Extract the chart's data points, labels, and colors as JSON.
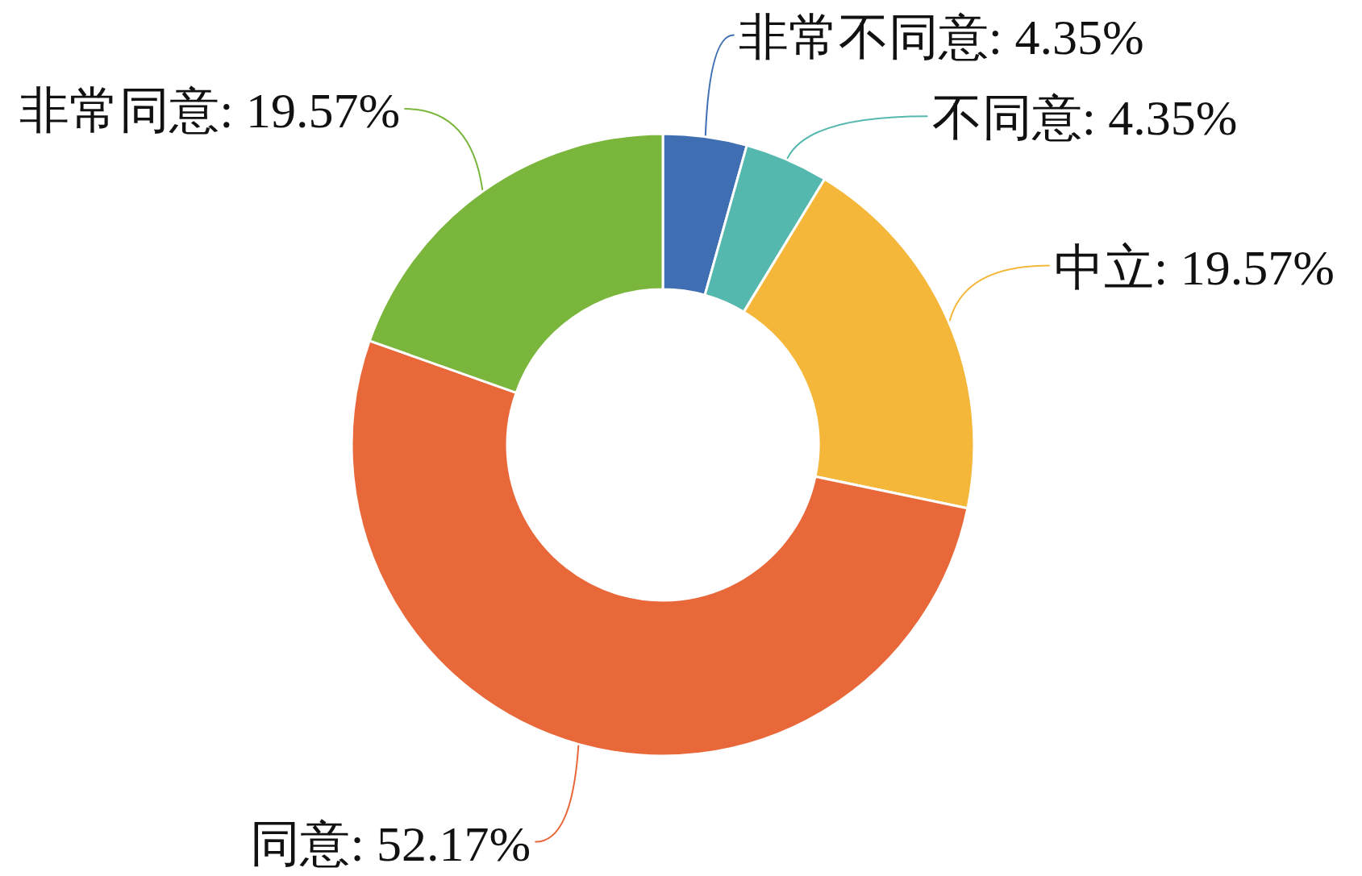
{
  "chart_data": {
    "type": "donut",
    "categories": [
      "非常不同意",
      "不同意",
      "中立",
      "同意",
      "非常同意"
    ],
    "values": [
      4.35,
      4.35,
      19.57,
      52.17,
      19.57
    ],
    "colors": [
      "#3f6fb2",
      "#55b8ae",
      "#f4b73a",
      "#e8683a",
      "#7bb63c"
    ],
    "value_labels": [
      "4.35%",
      "4.35%",
      "19.57%",
      "52.17%",
      "19.57%"
    ]
  }
}
